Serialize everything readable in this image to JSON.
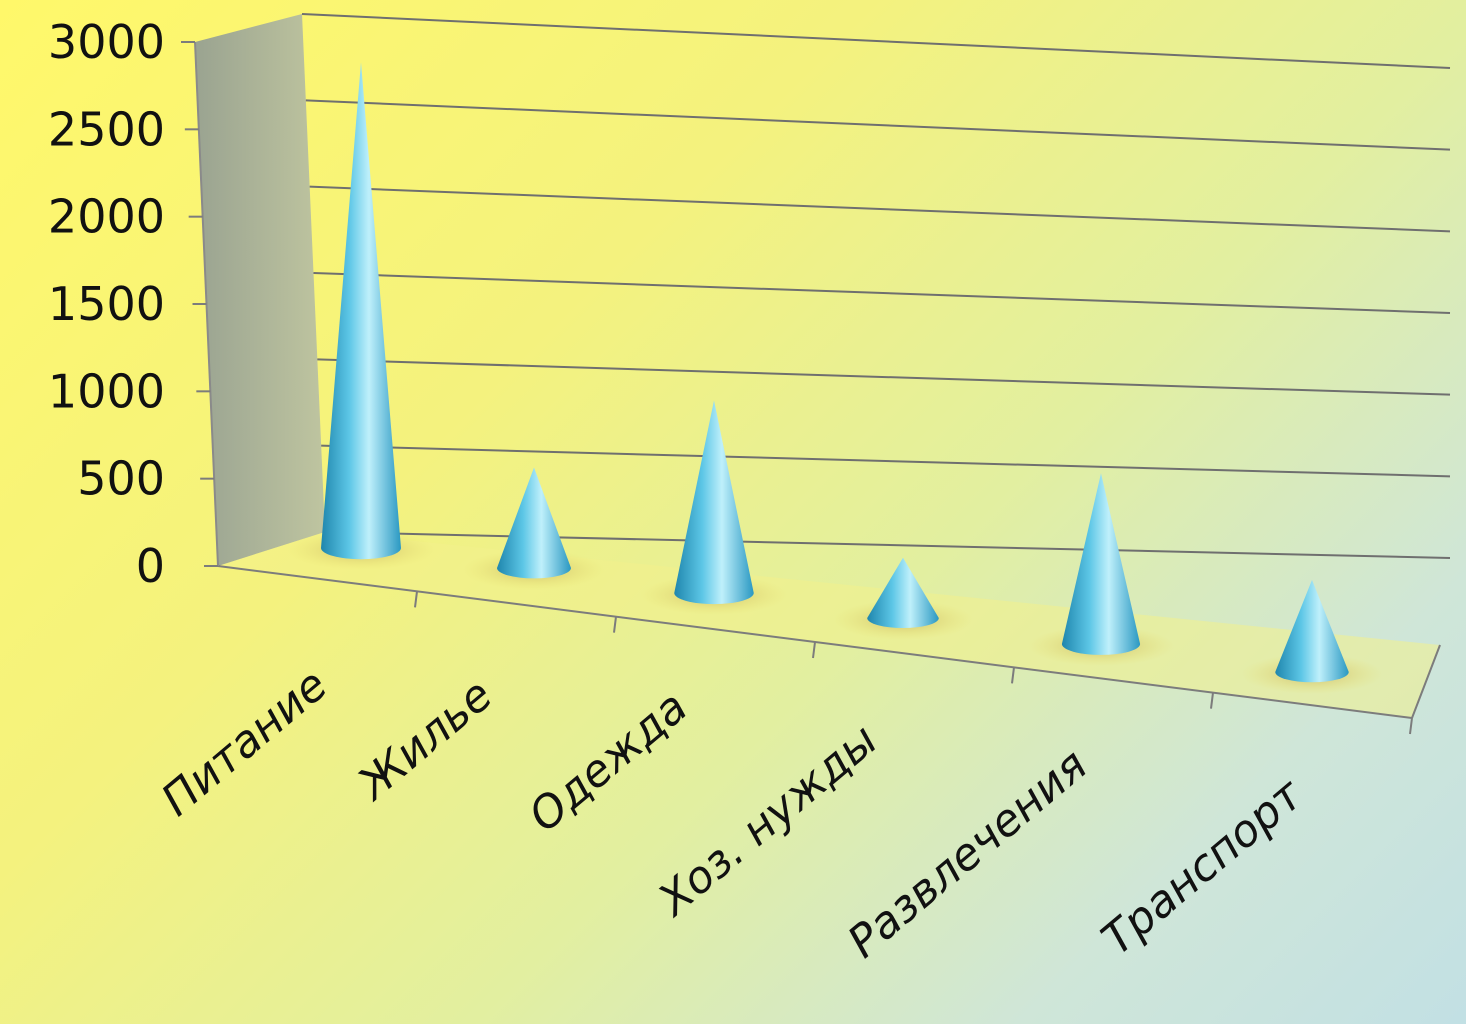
{
  "chart_data": {
    "type": "bar",
    "bar_shape": "cone",
    "categories": [
      "Питание",
      "Жилье",
      "Одежда",
      "Хоз. нужды",
      "Развлечения",
      "Транспорт"
    ],
    "values": [
      2900,
      600,
      1150,
      360,
      1020,
      550
    ],
    "yticks": [
      "0",
      "500",
      "1000",
      "1500",
      "2000",
      "2500",
      "3000"
    ],
    "ylim": [
      0,
      3000
    ],
    "grid": true,
    "colors": {
      "cone": "#3fb0d6",
      "cone_light": "#bfeefb",
      "cone_dark": "#1f7fa6",
      "wall": "#9aa49c"
    }
  }
}
